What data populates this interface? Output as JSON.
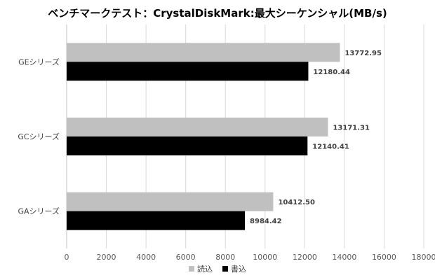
{
  "chart_data": {
    "type": "bar",
    "orientation": "horizontal",
    "title": "ベンチマークテスト：CrystalDiskMark:最大シーケンシャル(MB/s)",
    "categories": [
      "GEシリーズ",
      "GCシリーズ",
      "GAシリーズ"
    ],
    "series": [
      {
        "name": "読込",
        "color": "#c0c0c0",
        "values": [
          13772.95,
          13171.31,
          10412.5
        ],
        "labels": [
          "13772.95",
          "13171.31",
          "10412.50"
        ]
      },
      {
        "name": "書込",
        "color": "#000000",
        "values": [
          12180.44,
          12140.41,
          8984.42
        ],
        "labels": [
          "12180.44",
          "12140.41",
          "8984.42"
        ]
      }
    ],
    "xlim": [
      0,
      18000
    ],
    "x_ticks": [
      0,
      2000,
      4000,
      6000,
      8000,
      10000,
      12000,
      14000,
      16000,
      18000
    ],
    "grid": true,
    "legend_position": "bottom"
  }
}
